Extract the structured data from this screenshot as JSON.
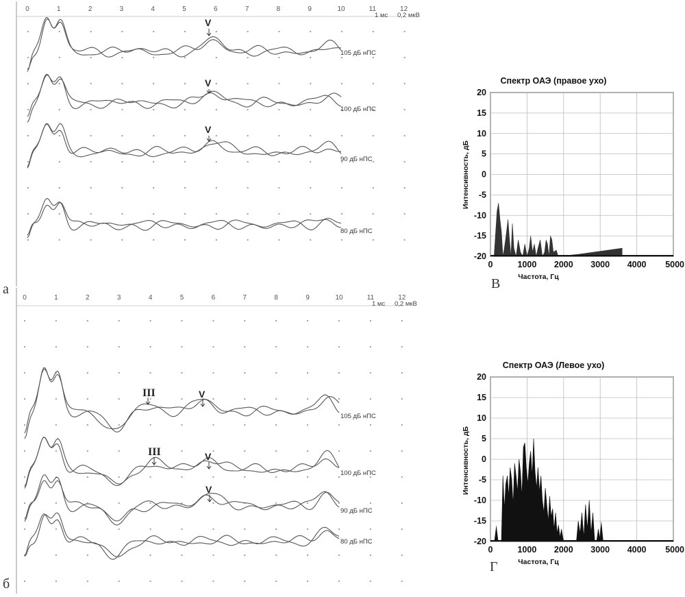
{
  "figure": {
    "panel_letters": [
      "а",
      "б",
      "В",
      "Г"
    ]
  },
  "abr_panels": [
    {
      "id": "a",
      "time_ticks": [
        "0",
        "1",
        "2",
        "3",
        "4",
        "5",
        "6",
        "7",
        "8",
        "9",
        "10",
        "11",
        "12"
      ],
      "scale_time": "1 мс",
      "scale_amp": "0,2 мкВ",
      "traces": [
        {
          "label": "105 дБ нПС",
          "peaks": [
            {
              "name": "V",
              "time_ms": 5.95
            }
          ]
        },
        {
          "label": "100 дБ нПС",
          "peaks": [
            {
              "name": "V",
              "time_ms": 5.95
            }
          ]
        },
        {
          "label": "90 дБ нПС",
          "peaks": [
            {
              "name": "V",
              "time_ms": 5.95
            }
          ]
        },
        {
          "label": "80 дБ нПС",
          "peaks": []
        }
      ]
    },
    {
      "id": "b",
      "time_ticks": [
        "0",
        "1",
        "2",
        "3",
        "4",
        "5",
        "6",
        "7",
        "8",
        "9",
        "10",
        "11",
        "12"
      ],
      "scale_time": "1 мс",
      "scale_amp": "0,2 мкВ",
      "traces": [
        {
          "label": "105 дБ нПС",
          "peaks": [
            {
              "name": "III",
              "time_ms": 3.9
            },
            {
              "name": "V",
              "time_ms": 5.7
            }
          ]
        },
        {
          "label": "100 дБ нПС",
          "peaks": [
            {
              "name": "III",
              "time_ms": 4.1
            },
            {
              "name": "V",
              "time_ms": 5.85
            }
          ]
        },
        {
          "label": "90 дБ нПС",
          "peaks": [
            {
              "name": "V",
              "time_ms": 5.85
            }
          ]
        },
        {
          "label": "80 дБ нПС",
          "peaks": []
        }
      ]
    }
  ],
  "chart_data": [
    {
      "type": "area",
      "title": "Спектр ОАЭ (правое ухо)",
      "xlabel": "Частота, Гц",
      "ylabel": "Интенсивность, дБ",
      "xlim": [
        0,
        5000
      ],
      "ylim": [
        -20,
        20
      ],
      "x_ticks": [
        "0",
        "1000",
        "2000",
        "3000",
        "4000",
        "5000"
      ],
      "y_ticks": [
        "20",
        "15",
        "10",
        "5",
        "0",
        "-5",
        "-10",
        "-15",
        "-20"
      ],
      "grid": true,
      "fill_color": "#333333",
      "x": [
        100,
        180,
        220,
        260,
        300,
        340,
        380,
        440,
        480,
        520,
        560,
        600,
        640,
        700,
        760,
        820,
        880,
        940,
        1000,
        1060,
        1100,
        1150,
        1200,
        1250,
        1300,
        1360,
        1420,
        1480,
        1520,
        1560,
        1600,
        1640,
        1680,
        1720,
        1800,
        1850,
        2400,
        3600
      ],
      "y": [
        -20,
        -9,
        -7,
        -11,
        -14,
        -20,
        -18,
        -14,
        -11,
        -16,
        -20,
        -12,
        -18,
        -20,
        -16,
        -19,
        -20,
        -17,
        -20,
        -18,
        -15,
        -19,
        -17,
        -20,
        -18,
        -16,
        -20,
        -19,
        -16,
        -17,
        -20,
        -15,
        -16,
        -19,
        -18.5,
        -20,
        -19.5,
        -18
      ]
    },
    {
      "type": "area",
      "title": "Спектр ОАЭ (Левое ухо)",
      "xlabel": "Частота, Гц",
      "ylabel": "Интенсивность, дБ",
      "xlim": [
        0,
        5000
      ],
      "ylim": [
        -20,
        20
      ],
      "x_ticks": [
        "0",
        "1000",
        "2000",
        "3000",
        "4000",
        "5000"
      ],
      "y_ticks": [
        "20",
        "15",
        "10",
        "5",
        "0",
        "-5",
        "-10",
        "-15",
        "-20"
      ],
      "grid": true,
      "fill_color": "#111111",
      "x": [
        300,
        340,
        380,
        420,
        460,
        500,
        540,
        580,
        620,
        660,
        700,
        740,
        780,
        820,
        860,
        900,
        940,
        980,
        1020,
        1060,
        1100,
        1140,
        1180,
        1220,
        1260,
        1300,
        1340,
        1380,
        1420,
        1460,
        1500,
        1540,
        1580,
        1620,
        1660,
        1700,
        1740,
        1780,
        1820,
        1860,
        1900,
        1940,
        1980,
        2000,
        2350,
        2400,
        2450,
        2500,
        2550,
        2600,
        2650,
        2700,
        2750,
        2800,
        2850,
        2900,
        2950,
        3000
      ],
      "y": [
        -20,
        -4,
        -12,
        -6,
        -4,
        -9,
        -2,
        -5,
        -11,
        -1,
        -4,
        -8,
        0,
        -3,
        -9,
        3,
        4,
        -2,
        -6,
        -1,
        2,
        -4,
        5,
        -3,
        -7,
        -2,
        -8,
        -4,
        -10,
        -13,
        -7,
        -11,
        -15,
        -9,
        -14,
        -12,
        -17,
        -13,
        -18,
        -16,
        -19,
        -17,
        -19,
        -20,
        -20,
        -15,
        -18,
        -13,
        -19,
        -11,
        -17,
        -10,
        -18,
        -13,
        -20,
        -20,
        -17,
        -20
      ],
      "extra_spikes": [
        {
          "x": 160,
          "y": -16
        },
        {
          "x": 3030,
          "y": -15
        }
      ]
    }
  ]
}
